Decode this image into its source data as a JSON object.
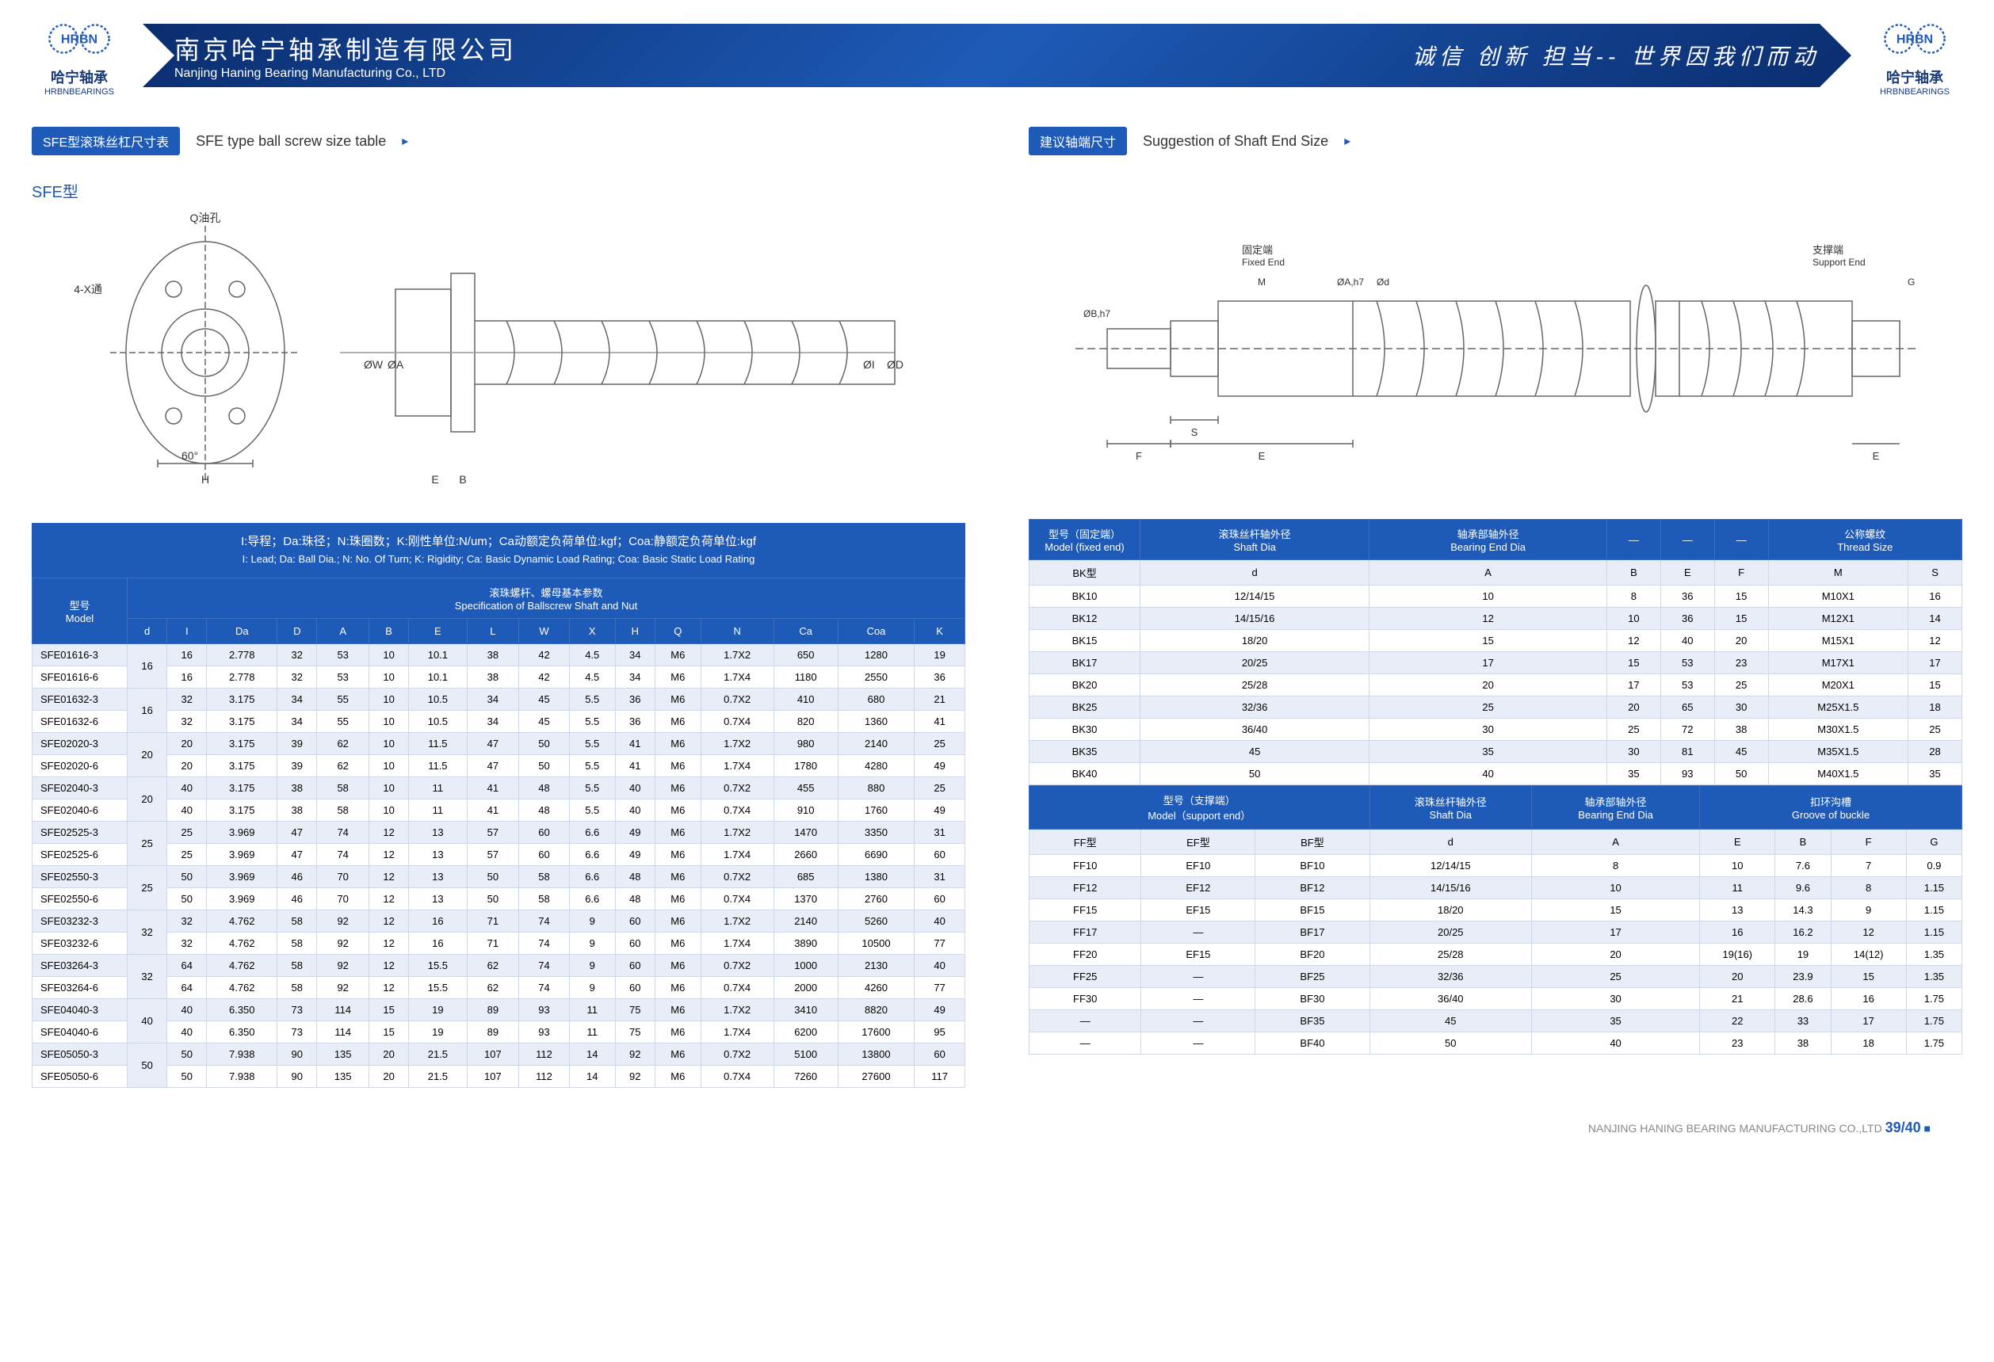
{
  "header": {
    "logo_cn": "哈宁轴承",
    "logo_en": "HRBNBEARINGS",
    "company_cn": "南京哈宁轴承制造有限公司",
    "company_en": "Nanjing Haning Bearing Manufacturing Co., LTD",
    "slogan": "诚信 创新 担当-- 世界因我们而动"
  },
  "left": {
    "badge": "SFE型滚珠丝杠尺寸表",
    "title": "SFE type ball screw size table",
    "model_label": "SFE型",
    "legend_cn": "I:导程；Da:珠径；N:珠圈数；K:刚性单位:N/um；Ca动额定负荷单位:kgf；Coa:静额定负荷单位:kgf",
    "legend_en": "I: Lead; Da: Ball Dia.; N: No. Of Turn; K: Rigidity; Ca: Basic Dynamic Load Rating; Coa: Basic Static Load Rating",
    "spec_cn": "滚珠螺杆、螺母基本参数",
    "spec_en": "Specification of Ballscrew Shaft and Nut",
    "model_label2_cn": "型号",
    "model_label2_en": "Model",
    "cols": [
      "d",
      "I",
      "Da",
      "D",
      "A",
      "B",
      "E",
      "L",
      "W",
      "X",
      "H",
      "Q",
      "N",
      "Ca",
      "Coa",
      "K"
    ],
    "rows": [
      {
        "m": "SFE01616-3",
        "d": "16",
        "v": [
          "16",
          "2.778",
          "32",
          "53",
          "10",
          "10.1",
          "38",
          "42",
          "4.5",
          "34",
          "M6",
          "1.7X2",
          "650",
          "1280",
          "19"
        ]
      },
      {
        "m": "SFE01616-6",
        "d": "",
        "v": [
          "16",
          "2.778",
          "32",
          "53",
          "10",
          "10.1",
          "38",
          "42",
          "4.5",
          "34",
          "M6",
          "1.7X4",
          "1180",
          "2550",
          "36"
        ]
      },
      {
        "m": "SFE01632-3",
        "d": "16",
        "v": [
          "32",
          "3.175",
          "34",
          "55",
          "10",
          "10.5",
          "34",
          "45",
          "5.5",
          "36",
          "M6",
          "0.7X2",
          "410",
          "680",
          "21"
        ]
      },
      {
        "m": "SFE01632-6",
        "d": "",
        "v": [
          "32",
          "3.175",
          "34",
          "55",
          "10",
          "10.5",
          "34",
          "45",
          "5.5",
          "36",
          "M6",
          "0.7X4",
          "820",
          "1360",
          "41"
        ]
      },
      {
        "m": "SFE02020-3",
        "d": "20",
        "v": [
          "20",
          "3.175",
          "39",
          "62",
          "10",
          "11.5",
          "47",
          "50",
          "5.5",
          "41",
          "M6",
          "1.7X2",
          "980",
          "2140",
          "25"
        ]
      },
      {
        "m": "SFE02020-6",
        "d": "",
        "v": [
          "20",
          "3.175",
          "39",
          "62",
          "10",
          "11.5",
          "47",
          "50",
          "5.5",
          "41",
          "M6",
          "1.7X4",
          "1780",
          "4280",
          "49"
        ]
      },
      {
        "m": "SFE02040-3",
        "d": "20",
        "v": [
          "40",
          "3.175",
          "38",
          "58",
          "10",
          "11",
          "41",
          "48",
          "5.5",
          "40",
          "M6",
          "0.7X2",
          "455",
          "880",
          "25"
        ]
      },
      {
        "m": "SFE02040-6",
        "d": "",
        "v": [
          "40",
          "3.175",
          "38",
          "58",
          "10",
          "11",
          "41",
          "48",
          "5.5",
          "40",
          "M6",
          "0.7X4",
          "910",
          "1760",
          "49"
        ]
      },
      {
        "m": "SFE02525-3",
        "d": "25",
        "v": [
          "25",
          "3.969",
          "47",
          "74",
          "12",
          "13",
          "57",
          "60",
          "6.6",
          "49",
          "M6",
          "1.7X2",
          "1470",
          "3350",
          "31"
        ]
      },
      {
        "m": "SFE02525-6",
        "d": "",
        "v": [
          "25",
          "3.969",
          "47",
          "74",
          "12",
          "13",
          "57",
          "60",
          "6.6",
          "49",
          "M6",
          "1.7X4",
          "2660",
          "6690",
          "60"
        ]
      },
      {
        "m": "SFE02550-3",
        "d": "25",
        "v": [
          "50",
          "3.969",
          "46",
          "70",
          "12",
          "13",
          "50",
          "58",
          "6.6",
          "48",
          "M6",
          "0.7X2",
          "685",
          "1380",
          "31"
        ]
      },
      {
        "m": "SFE02550-6",
        "d": "",
        "v": [
          "50",
          "3.969",
          "46",
          "70",
          "12",
          "13",
          "50",
          "58",
          "6.6",
          "48",
          "M6",
          "0.7X4",
          "1370",
          "2760",
          "60"
        ]
      },
      {
        "m": "SFE03232-3",
        "d": "32",
        "v": [
          "32",
          "4.762",
          "58",
          "92",
          "12",
          "16",
          "71",
          "74",
          "9",
          "60",
          "M6",
          "1.7X2",
          "2140",
          "5260",
          "40"
        ]
      },
      {
        "m": "SFE03232-6",
        "d": "",
        "v": [
          "32",
          "4.762",
          "58",
          "92",
          "12",
          "16",
          "71",
          "74",
          "9",
          "60",
          "M6",
          "1.7X4",
          "3890",
          "10500",
          "77"
        ]
      },
      {
        "m": "SFE03264-3",
        "d": "32",
        "v": [
          "64",
          "4.762",
          "58",
          "92",
          "12",
          "15.5",
          "62",
          "74",
          "9",
          "60",
          "M6",
          "0.7X2",
          "1000",
          "2130",
          "40"
        ]
      },
      {
        "m": "SFE03264-6",
        "d": "",
        "v": [
          "64",
          "4.762",
          "58",
          "92",
          "12",
          "15.5",
          "62",
          "74",
          "9",
          "60",
          "M6",
          "0.7X4",
          "2000",
          "4260",
          "77"
        ]
      },
      {
        "m": "SFE04040-3",
        "d": "40",
        "v": [
          "40",
          "6.350",
          "73",
          "114",
          "15",
          "19",
          "89",
          "93",
          "11",
          "75",
          "M6",
          "1.7X2",
          "3410",
          "8820",
          "49"
        ]
      },
      {
        "m": "SFE04040-6",
        "d": "",
        "v": [
          "40",
          "6.350",
          "73",
          "114",
          "15",
          "19",
          "89",
          "93",
          "11",
          "75",
          "M6",
          "1.7X4",
          "6200",
          "17600",
          "95"
        ]
      },
      {
        "m": "SFE05050-3",
        "d": "50",
        "v": [
          "50",
          "7.938",
          "90",
          "135",
          "20",
          "21.5",
          "107",
          "112",
          "14",
          "92",
          "M6",
          "0.7X2",
          "5100",
          "13800",
          "60"
        ]
      },
      {
        "m": "SFE05050-6",
        "d": "",
        "v": [
          "50",
          "7.938",
          "90",
          "135",
          "20",
          "21.5",
          "107",
          "112",
          "14",
          "92",
          "M6",
          "0.7X4",
          "7260",
          "27600",
          "117"
        ]
      }
    ]
  },
  "right": {
    "badge": "建议轴端尺寸",
    "title": "Suggestion of Shaft End Size",
    "t1_h1_cn": "型号（固定端）",
    "t1_h1_en": "Model (fixed end)",
    "t1_h2_cn": "滚珠丝杆轴外径",
    "t1_h2_en": "Shaft Dia",
    "t1_h3_cn": "轴承部轴外径",
    "t1_h3_en": "Bearing End Dia",
    "t1_h7_cn": "公称螺纹",
    "t1_h7_en": "Thread Size",
    "t1_sub": [
      "BK型",
      "d",
      "A",
      "B",
      "E",
      "F",
      "M",
      "S"
    ],
    "t1_rows": [
      [
        "BK10",
        "12/14/15",
        "10",
        "8",
        "36",
        "15",
        "M10X1",
        "16"
      ],
      [
        "BK12",
        "14/15/16",
        "12",
        "10",
        "36",
        "15",
        "M12X1",
        "14"
      ],
      [
        "BK15",
        "18/20",
        "15",
        "12",
        "40",
        "20",
        "M15X1",
        "12"
      ],
      [
        "BK17",
        "20/25",
        "17",
        "15",
        "53",
        "23",
        "M17X1",
        "17"
      ],
      [
        "BK20",
        "25/28",
        "20",
        "17",
        "53",
        "25",
        "M20X1",
        "15"
      ],
      [
        "BK25",
        "32/36",
        "25",
        "20",
        "65",
        "30",
        "M25X1.5",
        "18"
      ],
      [
        "BK30",
        "36/40",
        "30",
        "25",
        "72",
        "38",
        "M30X1.5",
        "25"
      ],
      [
        "BK35",
        "45",
        "35",
        "30",
        "81",
        "45",
        "M35X1.5",
        "28"
      ],
      [
        "BK40",
        "50",
        "40",
        "35",
        "93",
        "50",
        "M40X1.5",
        "35"
      ]
    ],
    "t2_h1_cn": "型号（支撑端）",
    "t2_h1_en": "Model（support end）",
    "t2_h2_cn": "滚珠丝杆轴外径",
    "t2_h2_en": "Shaft Dia",
    "t2_h3_cn": "轴承部轴外径",
    "t2_h3_en": "Bearing End Dia",
    "t2_h4_cn": "扣环沟槽",
    "t2_h4_en": "Groove of buckle",
    "t2_sub": [
      "FF型",
      "EF型",
      "BF型",
      "d",
      "A",
      "E",
      "B",
      "F",
      "G"
    ],
    "t2_rows": [
      [
        "FF10",
        "EF10",
        "BF10",
        "12/14/15",
        "8",
        "10",
        "7.6",
        "7",
        "0.9"
      ],
      [
        "FF12",
        "EF12",
        "BF12",
        "14/15/16",
        "10",
        "11",
        "9.6",
        "8",
        "1.15"
      ],
      [
        "FF15",
        "EF15",
        "BF15",
        "18/20",
        "15",
        "13",
        "14.3",
        "9",
        "1.15"
      ],
      [
        "FF17",
        "—",
        "BF17",
        "20/25",
        "17",
        "16",
        "16.2",
        "12",
        "1.15"
      ],
      [
        "FF20",
        "EF15",
        "BF20",
        "25/28",
        "20",
        "19(16)",
        "19",
        "14(12)",
        "1.35"
      ],
      [
        "FF25",
        "—",
        "BF25",
        "32/36",
        "25",
        "20",
        "23.9",
        "15",
        "1.35"
      ],
      [
        "FF30",
        "—",
        "BF30",
        "36/40",
        "30",
        "21",
        "28.6",
        "16",
        "1.75"
      ],
      [
        "—",
        "—",
        "BF35",
        "45",
        "35",
        "22",
        "33",
        "17",
        "1.75"
      ],
      [
        "—",
        "—",
        "BF40",
        "50",
        "40",
        "23",
        "38",
        "18",
        "1.75"
      ]
    ]
  },
  "footer": {
    "company": "NANJING HANING BEARING MANUFACTURING CO.,LTD",
    "page": "39/40"
  },
  "diagram_labels": {
    "left": {
      "oil": "Q油孔",
      "hole": "4-X通",
      "ang": "60°",
      "H": "H",
      "E": "E",
      "B": "B",
      "W": "ØW",
      "A": "ØA",
      "I": "ØI",
      "D": "ØD"
    },
    "right": {
      "fixed_cn": "固定端",
      "fixed_en": "Fixed End",
      "support_cn": "支撑端",
      "support_en": "Support End",
      "B": "ØB,h7",
      "A": "ØA,h7",
      "d": "Ød",
      "M": "M",
      "S": "S",
      "F": "F",
      "E": "E",
      "G": "G"
    }
  },
  "colors": {
    "primary": "#1e5bb8",
    "dark": "#0a2d6e",
    "row_odd": "#e8edf7",
    "row_even": "#ffffff",
    "border": "#d0d8e8"
  }
}
